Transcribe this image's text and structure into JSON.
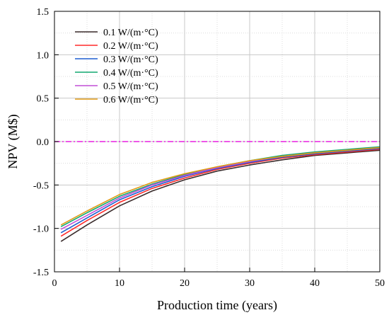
{
  "chart_data": {
    "type": "line",
    "xlabel": "Production time (years)",
    "ylabel": "NPV (M$)",
    "xlim": [
      0,
      50
    ],
    "ylim": [
      -1.5,
      1.5
    ],
    "xticks": [
      "0",
      "10",
      "20",
      "30",
      "40",
      "50"
    ],
    "yticks": [
      "-1.5",
      "-1.0",
      "-0.5",
      "0.0",
      "0.5",
      "1.0",
      "1.5"
    ],
    "grid": true,
    "legend_position": "top-left",
    "reference_line": {
      "y": 0.0,
      "style": "dash-dot",
      "color": "#e81ee0"
    },
    "x": [
      1,
      5,
      10,
      15,
      20,
      25,
      30,
      35,
      40,
      45,
      50
    ],
    "series": [
      {
        "name": "0.1 W/(m·°C)",
        "color": "#3a2c2c",
        "values": [
          -1.15,
          -0.96,
          -0.74,
          -0.57,
          -0.44,
          -0.34,
          -0.27,
          -0.21,
          -0.16,
          -0.13,
          -0.1
        ]
      },
      {
        "name": "0.2 W/(m·°C)",
        "color": "#ff2a2a",
        "values": [
          -1.09,
          -0.91,
          -0.7,
          -0.54,
          -0.42,
          -0.32,
          -0.25,
          -0.19,
          -0.15,
          -0.12,
          -0.09
        ]
      },
      {
        "name": "0.3 W/(m·°C)",
        "color": "#1f5fd0",
        "values": [
          -1.05,
          -0.88,
          -0.67,
          -0.52,
          -0.4,
          -0.31,
          -0.24,
          -0.18,
          -0.14,
          -0.11,
          -0.08
        ]
      },
      {
        "name": "0.4 W/(m·°C)",
        "color": "#12a870",
        "values": [
          -0.98,
          -0.82,
          -0.63,
          -0.49,
          -0.38,
          -0.29,
          -0.22,
          -0.16,
          -0.12,
          -0.09,
          -0.06
        ]
      },
      {
        "name": "0.5 W/(m·°C)",
        "color": "#c24fd6",
        "values": [
          -1.01,
          -0.85,
          -0.65,
          -0.5,
          -0.39,
          -0.3,
          -0.23,
          -0.17,
          -0.13,
          -0.1,
          -0.07
        ]
      },
      {
        "name": "0.6 W/(m·°C)",
        "color": "#e09a14",
        "values": [
          -0.96,
          -0.8,
          -0.61,
          -0.47,
          -0.37,
          -0.29,
          -0.22,
          -0.17,
          -0.13,
          -0.1,
          -0.07
        ]
      }
    ]
  }
}
